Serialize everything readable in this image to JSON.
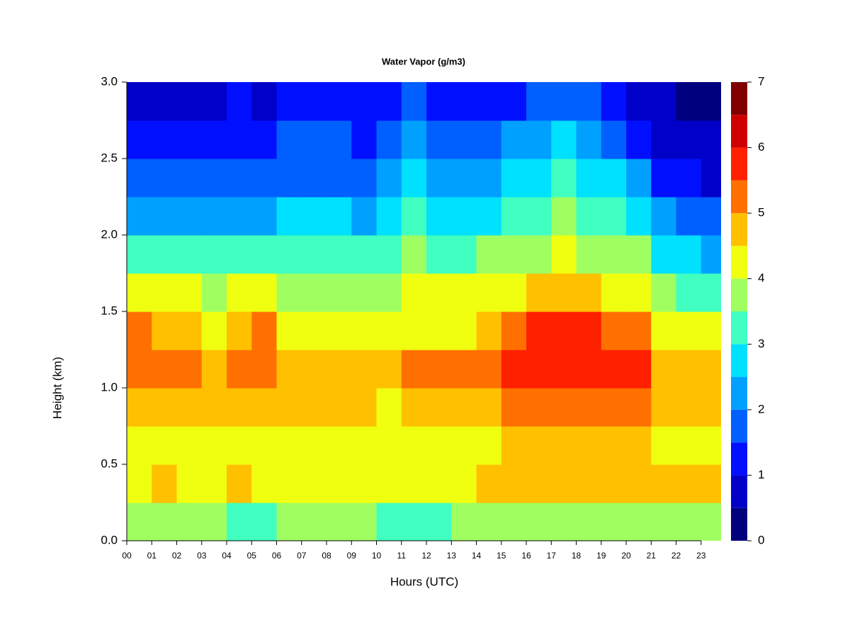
{
  "chart_data": {
    "type": "contour",
    "title": "Water Vapor (g/m3)",
    "x_label": "Hours (UTC)",
    "y_label": "Height (km)",
    "xlim": [
      0,
      23.8
    ],
    "ylim": [
      0,
      3
    ],
    "xticks": [
      {
        "value": 0,
        "label": "00"
      },
      {
        "value": 1,
        "label": "01"
      },
      {
        "value": 2,
        "label": "02"
      },
      {
        "value": 3,
        "label": "03"
      },
      {
        "value": 4,
        "label": "04"
      },
      {
        "value": 5,
        "label": "05"
      },
      {
        "value": 6,
        "label": "06"
      },
      {
        "value": 7,
        "label": "07"
      },
      {
        "value": 8,
        "label": "08"
      },
      {
        "value": 9,
        "label": "09"
      },
      {
        "value": 10,
        "label": "10"
      },
      {
        "value": 11,
        "label": "11"
      },
      {
        "value": 12,
        "label": "12"
      },
      {
        "value": 13,
        "label": "13"
      },
      {
        "value": 14,
        "label": "14"
      },
      {
        "value": 15,
        "label": "15"
      },
      {
        "value": 16,
        "label": "16"
      },
      {
        "value": 17,
        "label": "17"
      },
      {
        "value": 18,
        "label": "18"
      },
      {
        "value": 19,
        "label": "19"
      },
      {
        "value": 20,
        "label": "20"
      },
      {
        "value": 21,
        "label": "21"
      },
      {
        "value": 22,
        "label": "22"
      },
      {
        "value": 23,
        "label": "23"
      }
    ],
    "yticks": [
      {
        "value": 0,
        "label": "0.0"
      },
      0.5,
      {
        "value": 1,
        "label": "1.0"
      },
      1.5,
      {
        "value": 2,
        "label": "2.0"
      },
      2.5,
      {
        "value": 3,
        "label": "3.0"
      }
    ],
    "x": [
      0.5,
      1.5,
      2.5,
      3.5,
      4.5,
      5.5,
      6.5,
      7.5,
      8.5,
      9.5,
      10.5,
      11.5,
      12.5,
      13.5,
      14.5,
      15.5,
      16.5,
      17.5,
      18.5,
      19.5,
      20.5,
      21.5,
      22.5,
      23.5
    ],
    "y": [
      0.125,
      0.375,
      0.625,
      0.875,
      1.125,
      1.375,
      1.625,
      1.875,
      2.125,
      2.375,
      2.625,
      2.875
    ],
    "z": [
      [
        3.6,
        3.6,
        3.6,
        3.6,
        3.4,
        3.3,
        3.5,
        3.5,
        3.6,
        3.6,
        3.4,
        3.3,
        3.3,
        3.5,
        3.6,
        3.6,
        3.7,
        3.7,
        3.7,
        3.7,
        3.6,
        3.6,
        3.6,
        3.7
      ],
      [
        4.4,
        4.5,
        4.4,
        4.4,
        4.5,
        4.4,
        4.3,
        4.4,
        4.4,
        4.4,
        4.3,
        4.3,
        4.3,
        4.4,
        4.6,
        4.7,
        4.7,
        4.6,
        4.6,
        4.5,
        4.6,
        4.7,
        4.7,
        4.6
      ],
      [
        4.3,
        4.3,
        4.2,
        4.2,
        4.2,
        4.3,
        4.1,
        4.0,
        4.1,
        4.1,
        4.1,
        4.2,
        4.2,
        4.2,
        4.4,
        4.7,
        4.9,
        4.8,
        4.7,
        4.6,
        4.5,
        4.3,
        4.2,
        4.1
      ],
      [
        4.9,
        4.8,
        4.6,
        4.5,
        4.6,
        4.9,
        4.5,
        4.5,
        4.5,
        4.5,
        4.4,
        4.5,
        4.5,
        4.6,
        4.9,
        5.2,
        5.4,
        5.4,
        5.3,
        5.3,
        5.1,
        4.8,
        4.6,
        4.5
      ],
      [
        5.4,
        5.2,
        5.0,
        4.9,
        5.0,
        5.4,
        4.9,
        4.9,
        4.9,
        4.8,
        4.8,
        5.0,
        5.0,
        5.0,
        5.3,
        5.6,
        5.9,
        5.9,
        5.8,
        5.8,
        5.6,
        4.9,
        4.8,
        4.6
      ],
      [
        5.0,
        4.9,
        4.6,
        4.4,
        4.5,
        5.0,
        4.4,
        4.4,
        4.4,
        4.3,
        4.3,
        4.4,
        4.4,
        4.4,
        4.8,
        5.3,
        5.5,
        5.6,
        5.5,
        5.4,
        5.2,
        4.3,
        4.1,
        4.0
      ],
      [
        4.1,
        4.1,
        4.0,
        3.9,
        4.0,
        4.1,
        3.9,
        3.8,
        3.8,
        3.8,
        3.8,
        4.0,
        4.0,
        4.0,
        4.1,
        4.4,
        4.5,
        4.6,
        4.5,
        4.4,
        4.1,
        3.5,
        3.3,
        3.1
      ],
      [
        3.3,
        3.3,
        3.2,
        3.2,
        3.2,
        3.3,
        3.2,
        3.2,
        3.1,
        3.2,
        3.2,
        3.5,
        3.4,
        3.3,
        3.6,
        3.8,
        3.9,
        4.0,
        3.9,
        3.8,
        3.5,
        2.8,
        2.6,
        2.4
      ],
      [
        2.3,
        2.3,
        2.3,
        2.4,
        2.4,
        2.4,
        2.5,
        2.5,
        2.5,
        2.4,
        2.5,
        3.0,
        2.8,
        2.6,
        2.9,
        3.2,
        3.4,
        3.5,
        3.4,
        3.2,
        2.8,
        2.0,
        1.8,
        1.6
      ],
      [
        1.7,
        1.7,
        1.7,
        1.8,
        1.8,
        1.8,
        1.9,
        1.9,
        1.9,
        1.8,
        2.0,
        2.5,
        2.3,
        2.0,
        2.3,
        2.7,
        2.9,
        3.0,
        2.9,
        2.6,
        2.0,
        1.3,
        1.0,
        0.9
      ],
      [
        1.2,
        1.2,
        1.2,
        1.3,
        1.4,
        1.4,
        1.5,
        1.5,
        1.5,
        1.4,
        1.6,
        2.0,
        1.8,
        1.5,
        1.7,
        2.1,
        2.4,
        2.5,
        2.3,
        1.9,
        1.2,
        0.8,
        0.6,
        0.5
      ],
      [
        0.9,
        0.9,
        0.9,
        0.9,
        1.0,
        0.9,
        1.0,
        1.0,
        1.0,
        1.0,
        1.1,
        1.5,
        1.3,
        1.1,
        1.2,
        1.4,
        1.6,
        1.8,
        1.5,
        1.2,
        0.8,
        0.5,
        0.4,
        0.3
      ]
    ],
    "levels": [
      0,
      0.5,
      1,
      1.5,
      2,
      2.5,
      3,
      3.5,
      4,
      4.5,
      5,
      5.5,
      6,
      6.5,
      7
    ],
    "colors": [
      "#00007f",
      "#0000c8",
      "#0010ff",
      "#0060ff",
      "#00a0ff",
      "#00e0ff",
      "#40ffc0",
      "#a0ff60",
      "#f0ff10",
      "#ffc000",
      "#ff7000",
      "#ff2000",
      "#d00000",
      "#800000"
    ],
    "zlim": [
      0,
      7
    ],
    "zticks": [
      0,
      1,
      2,
      3,
      4,
      5,
      6,
      7
    ]
  }
}
